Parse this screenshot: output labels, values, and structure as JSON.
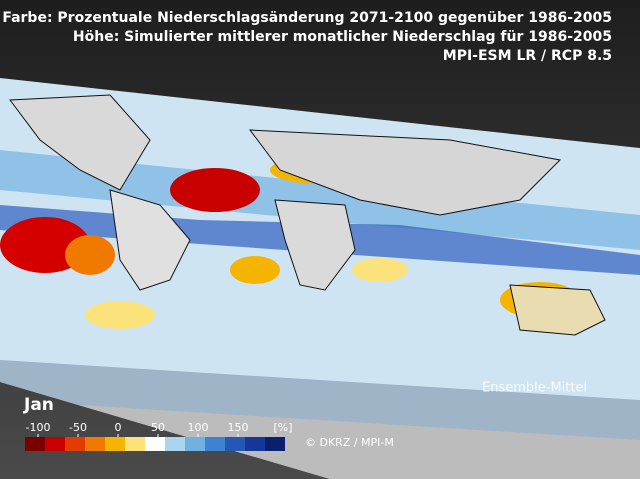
{
  "header": {
    "line1": "Farbe: Prozentuale Niederschlagsänderung 2071-2100 gegenüber 1986-2005",
    "line2": "Höhe: Simulierter mittlerer monatlicher Niederschlag für 1986-2005",
    "line3": "MPI-ESM LR / RCP 8.5"
  },
  "month": "Jan",
  "legend": {
    "ticks": [
      -100,
      -50,
      0,
      50,
      100,
      150
    ],
    "unit": "[%]",
    "colors": [
      "#7a0000",
      "#c80000",
      "#e63b00",
      "#f07a00",
      "#f5b400",
      "#fbe27a",
      "#ffffff",
      "#a9d6ee",
      "#70b1e0",
      "#3f82d2",
      "#2557b6",
      "#15379a",
      "#0a1f6e"
    ]
  },
  "annotation": "Ensemble-Mittel",
  "credit": "© DKRZ / MPI-M"
}
